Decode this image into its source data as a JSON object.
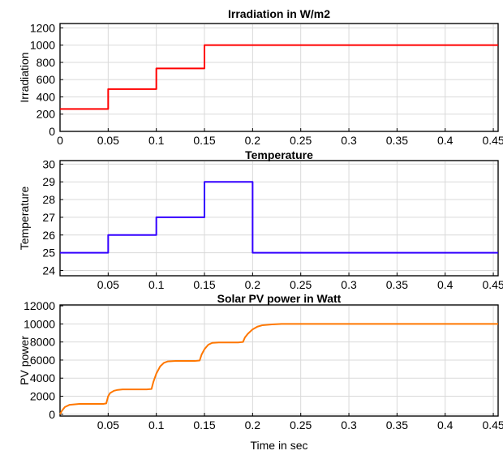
{
  "chart_data": [
    {
      "type": "line",
      "title": "Irradiation in W/m2",
      "xlabel": "",
      "ylabel": "Irradiation",
      "xlim": [
        0,
        0.455
      ],
      "ylim": [
        0,
        1250
      ],
      "xticks": [
        0,
        0.05,
        0.1,
        0.15,
        0.2,
        0.25,
        0.3,
        0.35,
        0.4,
        0.45
      ],
      "xtick_labels": [
        "0",
        "0.05",
        "0.1",
        "0.15",
        "0.2",
        "0.25",
        "0.3",
        "0.35",
        "0.4",
        "0.45"
      ],
      "yticks": [
        0,
        200,
        400,
        600,
        800,
        1000,
        1200
      ],
      "ytick_labels": [
        "0",
        "200",
        "400",
        "600",
        "800",
        "1000",
        "1200"
      ],
      "grid": true,
      "series": [
        {
          "color": "#ff0000",
          "x": [
            0,
            0.05,
            0.05,
            0.1,
            0.1,
            0.15,
            0.15,
            0.455
          ],
          "y": [
            260,
            260,
            490,
            490,
            730,
            730,
            1000,
            1000
          ]
        }
      ]
    },
    {
      "type": "line",
      "title": "Temperature",
      "xlabel": "",
      "ylabel": "Temperature",
      "xlim": [
        0,
        0.455
      ],
      "ylim": [
        23.7,
        30.2
      ],
      "xticks": [
        0.05,
        0.1,
        0.15,
        0.2,
        0.25,
        0.3,
        0.35,
        0.4,
        0.45
      ],
      "xtick_labels": [
        "0.05",
        "0.1",
        "0.15",
        "0.2",
        "0.25",
        "0.3",
        "0.35",
        "0.4",
        "0.45"
      ],
      "yticks": [
        24,
        25,
        26,
        27,
        28,
        29,
        30
      ],
      "ytick_labels": [
        "24",
        "25",
        "26",
        "27",
        "28",
        "29",
        "30"
      ],
      "grid": true,
      "series": [
        {
          "color": "#3300ff",
          "x": [
            0,
            0.05,
            0.05,
            0.1,
            0.1,
            0.15,
            0.15,
            0.2,
            0.2,
            0.455
          ],
          "y": [
            25,
            25,
            26,
            26,
            27,
            27,
            29,
            29,
            25,
            25
          ]
        }
      ]
    },
    {
      "type": "line",
      "title": "Solar PV power in Watt",
      "xlabel": "Time in sec",
      "ylabel": "PV power",
      "xlim": [
        0,
        0.455
      ],
      "ylim": [
        -200,
        12100
      ],
      "xticks": [
        0.05,
        0.1,
        0.15,
        0.2,
        0.25,
        0.3,
        0.35,
        0.4,
        0.45
      ],
      "xtick_labels": [
        "0.05",
        "0.1",
        "0.15",
        "0.2",
        "0.25",
        "0.3",
        "0.35",
        "0.4",
        "0.45"
      ],
      "yticks": [
        0,
        2000,
        4000,
        6000,
        8000,
        10000,
        12000
      ],
      "ytick_labels": [
        "0",
        "2000",
        "4000",
        "6000",
        "8000",
        "10000",
        "12000"
      ],
      "grid": true,
      "series": [
        {
          "color": "#ff7700",
          "x": [
            0,
            0.002,
            0.005,
            0.01,
            0.02,
            0.03,
            0.045,
            0.048,
            0.05,
            0.052,
            0.056,
            0.06,
            0.065,
            0.07,
            0.08,
            0.09,
            0.095,
            0.097,
            0.1,
            0.104,
            0.108,
            0.112,
            0.12,
            0.13,
            0.14,
            0.145,
            0.147,
            0.15,
            0.154,
            0.158,
            0.165,
            0.175,
            0.185,
            0.19,
            0.192,
            0.195,
            0.2,
            0.205,
            0.21,
            0.22,
            0.23,
            0.25,
            0.3,
            0.35,
            0.4,
            0.455
          ],
          "y": [
            0,
            400,
            800,
            1050,
            1150,
            1150,
            1150,
            1200,
            2000,
            2350,
            2600,
            2700,
            2750,
            2750,
            2750,
            2750,
            2800,
            3600,
            4500,
            5300,
            5700,
            5850,
            5900,
            5900,
            5900,
            5950,
            6600,
            7200,
            7700,
            7900,
            7950,
            7950,
            7950,
            8000,
            8500,
            8900,
            9400,
            9700,
            9850,
            9950,
            10000,
            10000,
            10000,
            10000,
            10000,
            10000
          ]
        }
      ]
    }
  ]
}
